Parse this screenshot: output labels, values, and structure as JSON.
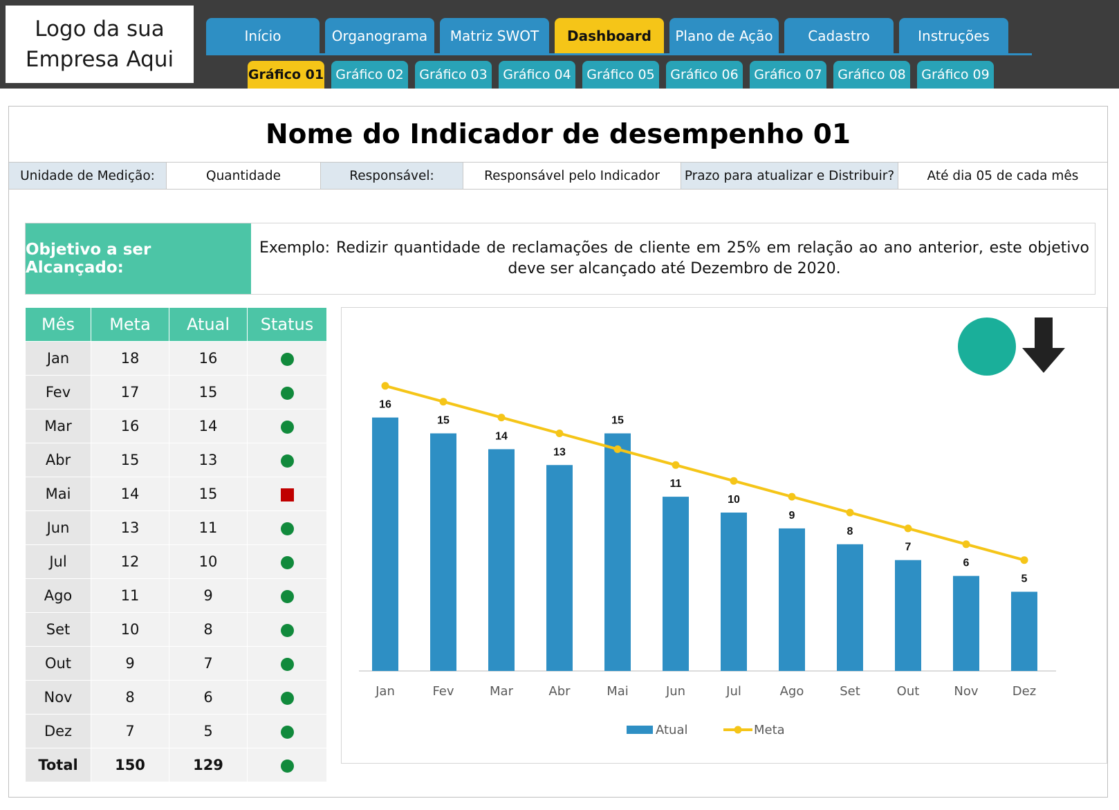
{
  "logo": {
    "text": "Logo da sua\nEmpresa Aqui"
  },
  "main_tabs": [
    {
      "label": "Início",
      "active": false
    },
    {
      "label": "Organograma",
      "active": false
    },
    {
      "label": "Matriz SWOT",
      "active": false
    },
    {
      "label": "Dashboard",
      "active": true
    },
    {
      "label": "Plano de Ação",
      "active": false
    },
    {
      "label": "Cadastro",
      "active": false
    },
    {
      "label": "Instruções",
      "active": false
    }
  ],
  "sub_tabs": [
    {
      "label": "Gráfico 01",
      "active": true
    },
    {
      "label": "Gráfico 02",
      "active": false
    },
    {
      "label": "Gráfico 03",
      "active": false
    },
    {
      "label": "Gráfico 04",
      "active": false
    },
    {
      "label": "Gráfico 05",
      "active": false
    },
    {
      "label": "Gráfico 06",
      "active": false
    },
    {
      "label": "Gráfico 07",
      "active": false
    },
    {
      "label": "Gráfico 08",
      "active": false
    },
    {
      "label": "Gráfico 09",
      "active": false
    }
  ],
  "title": "Nome do Indicador de desempenho 01",
  "info": {
    "unit_label": "Unidade de Medição:",
    "unit_value": "Quantidade",
    "resp_label": "Responsável:",
    "resp_value": "Responsável pelo Indicador",
    "deadline_label": "Prazo para atualizar e Distribuir?",
    "deadline_value": "Até dia 05 de cada mês"
  },
  "objective": {
    "label": "Objetivo a ser Alcançado:",
    "text": "Exemplo: Redizir quantidade de reclamações de cliente em 25% em relação ao ano anterior, este objetivo deve ser alcançado até Dezembro de 2020."
  },
  "table": {
    "headers": [
      "Mês",
      "Meta",
      "Atual",
      "Status"
    ],
    "rows": [
      {
        "month": "Jan",
        "meta": "18",
        "atual": "16",
        "status": "ok"
      },
      {
        "month": "Fev",
        "meta": "17",
        "atual": "15",
        "status": "ok"
      },
      {
        "month": "Mar",
        "meta": "16",
        "atual": "14",
        "status": "ok"
      },
      {
        "month": "Abr",
        "meta": "15",
        "atual": "13",
        "status": "ok"
      },
      {
        "month": "Mai",
        "meta": "14",
        "atual": "15",
        "status": "bad"
      },
      {
        "month": "Jun",
        "meta": "13",
        "atual": "11",
        "status": "ok"
      },
      {
        "month": "Jul",
        "meta": "12",
        "atual": "10",
        "status": "ok"
      },
      {
        "month": "Ago",
        "meta": "11",
        "atual": "9",
        "status": "ok"
      },
      {
        "month": "Set",
        "meta": "10",
        "atual": "8",
        "status": "ok"
      },
      {
        "month": "Out",
        "meta": "9",
        "atual": "7",
        "status": "ok"
      },
      {
        "month": "Nov",
        "meta": "8",
        "atual": "6",
        "status": "ok"
      },
      {
        "month": "Dez",
        "meta": "7",
        "atual": "5",
        "status": "ok"
      }
    ],
    "total": {
      "month": "Total",
      "meta": "150",
      "atual": "129",
      "status": "ok"
    }
  },
  "indicator": {
    "status_color": "#1aaf9a",
    "trend_icon": "arrow-down-icon"
  },
  "chart_data": {
    "type": "bar",
    "categories": [
      "Jan",
      "Fev",
      "Mar",
      "Abr",
      "Mai",
      "Jun",
      "Jul",
      "Ago",
      "Set",
      "Out",
      "Nov",
      "Dez"
    ],
    "series": [
      {
        "name": "Atual",
        "type": "bar",
        "color": "#2e8fc4",
        "values": [
          16,
          15,
          14,
          13,
          15,
          11,
          10,
          9,
          8,
          7,
          6,
          5
        ]
      },
      {
        "name": "Meta",
        "type": "line",
        "color": "#f5c518",
        "values": [
          18,
          17,
          16,
          15,
          14,
          13,
          12,
          11,
          10,
          9,
          8,
          7
        ]
      }
    ],
    "data_labels": "Atual",
    "ylim": [
      0,
      18
    ],
    "grid": false,
    "legend": "bottom"
  },
  "colors": {
    "topbar": "#3d3d3d",
    "main_tab": "#2e8fc4",
    "sub_tab": "#29a3b7",
    "active_tab": "#f5c518",
    "accent_green": "#4cc5a6",
    "status_ok": "#118a3c",
    "status_bad": "#c00000"
  }
}
